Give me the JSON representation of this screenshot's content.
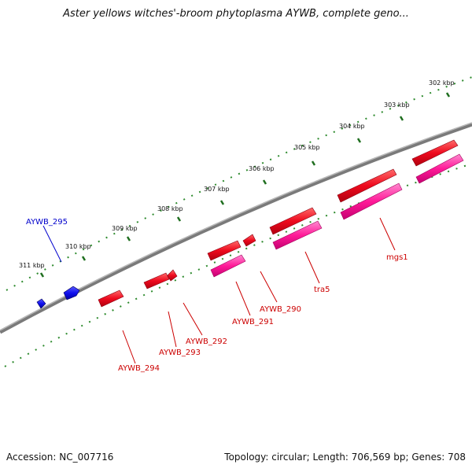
{
  "title": "Aster yellows witches'-broom phytoplasma AYWB, complete geno...",
  "footer": {
    "accession": "Accession: NC_007716",
    "summary": "Topology: circular; Length: 706,569 bp; Genes: 708"
  },
  "colors": {
    "backbone": "#808080",
    "tick": "#2e8b2e",
    "gene_forward": "#e8001c",
    "gene_forward_light": "#ff5a5a",
    "gene_pink": "#ff1493",
    "gene_pink_light": "#ff8ad0",
    "gene_reverse": "#0000ee",
    "label_red": "#cc0000",
    "label_blue": "#0000cc"
  },
  "scale_labels": [
    "302 kbp",
    "303 kbp",
    "304 kbp",
    "305 kbp",
    "306 kbp",
    "307 kbp",
    "308 kbp",
    "309 kbp",
    "310 kbp",
    "311 kbp"
  ],
  "gene_labels": [
    {
      "text": "AYWB_295",
      "color": "blue"
    },
    {
      "text": "mgs1",
      "color": "red"
    },
    {
      "text": "tra5",
      "color": "red"
    },
    {
      "text": "AYWB_290",
      "color": "red"
    },
    {
      "text": "AYWB_291",
      "color": "red"
    },
    {
      "text": "AYWB_292",
      "color": "red"
    },
    {
      "text": "AYWB_293",
      "color": "red"
    },
    {
      "text": "AYWB_294",
      "color": "red"
    }
  ]
}
